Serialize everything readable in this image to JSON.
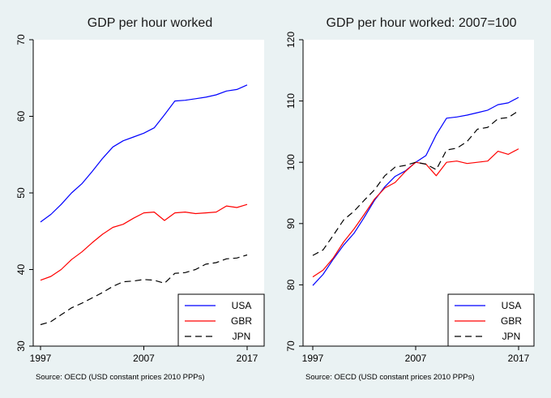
{
  "chart_data": [
    {
      "type": "line",
      "title": "GDP per hour worked",
      "xlabel": "",
      "ylabel": "",
      "x": [
        1997,
        1998,
        1999,
        2000,
        2001,
        2002,
        2003,
        2004,
        2005,
        2006,
        2007,
        2008,
        2009,
        2010,
        2011,
        2012,
        2013,
        2014,
        2015,
        2016,
        2017
      ],
      "xlim": [
        1997,
        2017
      ],
      "ylim": [
        30,
        70
      ],
      "x_ticks": [
        "1997",
        "2007",
        "2017"
      ],
      "y_ticks": [
        "30",
        "40",
        "50",
        "60",
        "70"
      ],
      "series": [
        {
          "name": "USA",
          "color": "#0000ff",
          "dash": "solid",
          "values": [
            46.2,
            47.2,
            48.5,
            50.0,
            51.2,
            52.8,
            54.5,
            56.0,
            56.8,
            57.3,
            57.8,
            58.5,
            60.2,
            62.0,
            62.1,
            62.3,
            62.5,
            62.8,
            63.3,
            63.5,
            64.1
          ]
        },
        {
          "name": "GBR",
          "color": "#ff0000",
          "dash": "solid",
          "values": [
            38.6,
            39.1,
            40.0,
            41.3,
            42.3,
            43.5,
            44.6,
            45.5,
            45.9,
            46.7,
            47.4,
            47.5,
            46.4,
            47.4,
            47.5,
            47.3,
            47.4,
            47.5,
            48.3,
            48.1,
            48.5
          ]
        },
        {
          "name": "JPN",
          "color": "#000000",
          "dash": "dashed",
          "values": [
            32.8,
            33.2,
            34.1,
            35.0,
            35.6,
            36.3,
            37.0,
            37.8,
            38.4,
            38.5,
            38.7,
            38.6,
            38.2,
            39.5,
            39.6,
            40.0,
            40.7,
            40.9,
            41.4,
            41.5,
            41.9
          ]
        }
      ],
      "legend": {
        "placement": "bottom-right",
        "entries": [
          "USA",
          "GBR",
          "JPN"
        ]
      },
      "note": "Source: OECD (USD constant prices 2010 PPPs)"
    },
    {
      "type": "line",
      "title": "GDP per hour worked: 2007=100",
      "xlabel": "",
      "ylabel": "",
      "x": [
        1997,
        1998,
        1999,
        2000,
        2001,
        2002,
        2003,
        2004,
        2005,
        2006,
        2007,
        2008,
        2009,
        2010,
        2011,
        2012,
        2013,
        2014,
        2015,
        2016,
        2017
      ],
      "xlim": [
        1997,
        2017
      ],
      "ylim": [
        70,
        120
      ],
      "x_ticks": [
        "1997",
        "2007",
        "2017"
      ],
      "y_ticks": [
        "70",
        "80",
        "90",
        "100",
        "110",
        "120"
      ],
      "series": [
        {
          "name": "USA",
          "color": "#0000ff",
          "dash": "solid",
          "values": [
            79.9,
            81.7,
            84.2,
            86.5,
            88.4,
            91.0,
            93.8,
            96.0,
            97.7,
            98.6,
            100.0,
            101.1,
            104.5,
            107.2,
            107.4,
            107.7,
            108.1,
            108.5,
            109.4,
            109.7,
            110.6
          ]
        },
        {
          "name": "GBR",
          "color": "#ff0000",
          "dash": "solid",
          "values": [
            81.3,
            82.4,
            84.4,
            87.0,
            89.1,
            91.5,
            94.0,
            95.8,
            96.7,
            98.5,
            100.0,
            99.7,
            97.8,
            100.0,
            100.2,
            99.8,
            100.0,
            100.2,
            101.8,
            101.3,
            102.2
          ]
        },
        {
          "name": "JPN",
          "color": "#000000",
          "dash": "dashed",
          "values": [
            84.8,
            85.7,
            88.1,
            90.6,
            92.0,
            93.8,
            95.5,
            97.8,
            99.2,
            99.5,
            100.0,
            99.7,
            98.8,
            102.0,
            102.3,
            103.4,
            105.4,
            105.7,
            107.1,
            107.3,
            108.4
          ]
        }
      ],
      "legend": {
        "placement": "bottom-right",
        "entries": [
          "USA",
          "GBR",
          "JPN"
        ]
      },
      "note": "Source: OECD (USD constant prices 2010 PPPs)"
    }
  ]
}
